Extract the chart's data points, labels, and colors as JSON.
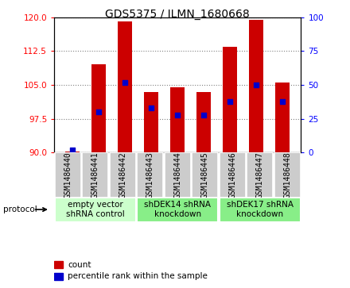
{
  "title": "GDS5375 / ILMN_1680668",
  "samples": [
    "GSM1486440",
    "GSM1486441",
    "GSM1486442",
    "GSM1486443",
    "GSM1486444",
    "GSM1486445",
    "GSM1486446",
    "GSM1486447",
    "GSM1486448"
  ],
  "counts": [
    90.2,
    109.5,
    119.0,
    103.5,
    104.5,
    103.5,
    113.5,
    119.5,
    105.5
  ],
  "percentile_ranks": [
    2.0,
    30.0,
    52.0,
    33.0,
    28.0,
    28.0,
    38.0,
    50.0,
    38.0
  ],
  "ylim_left": [
    90,
    120
  ],
  "ylim_right": [
    0,
    100
  ],
  "yticks_left": [
    90,
    97.5,
    105,
    112.5,
    120
  ],
  "yticks_right": [
    0,
    25,
    50,
    75,
    100
  ],
  "bar_color": "#cc0000",
  "dot_color": "#0000cc",
  "bar_bottom": 90,
  "groups": [
    {
      "label": "empty vector\nshRNA control",
      "start": 0,
      "end": 3,
      "color": "#ccffcc"
    },
    {
      "label": "shDEK14 shRNA\nknockdown",
      "start": 3,
      "end": 6,
      "color": "#88ee88"
    },
    {
      "label": "shDEK17 shRNA\nknockdown",
      "start": 6,
      "end": 9,
      "color": "#88ee88"
    }
  ],
  "legend_items": [
    {
      "label": "count",
      "color": "#cc0000"
    },
    {
      "label": "percentile rank within the sample",
      "color": "#0000cc"
    }
  ],
  "protocol_label": "protocol",
  "sample_bg_color": "#cccccc",
  "plot_bg": "#ffffff",
  "title_fontsize": 10,
  "tick_label_fontsize": 7,
  "group_label_fontsize": 7.5,
  "legend_fontsize": 7.5
}
